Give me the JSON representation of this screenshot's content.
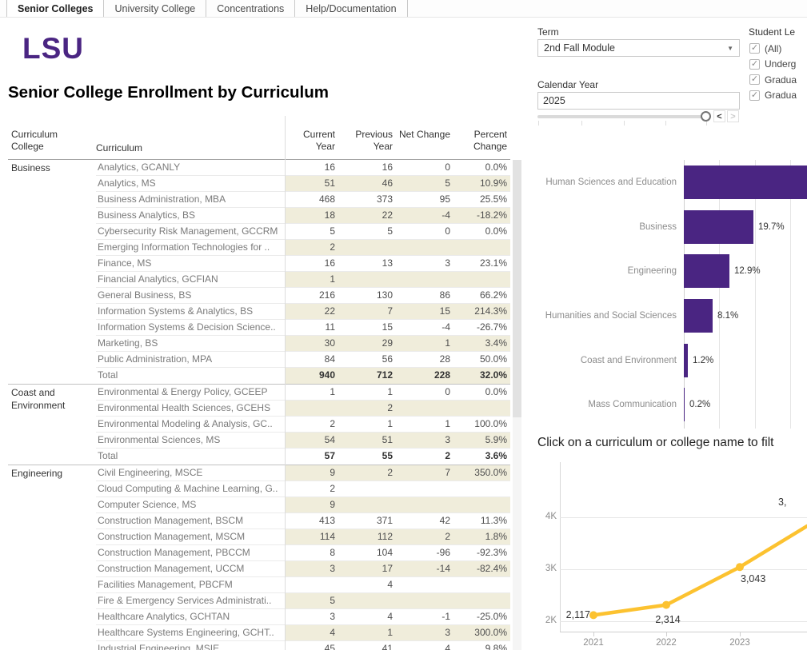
{
  "window": {
    "tabs": [
      {
        "label": "Senior Colleges",
        "active": true
      },
      {
        "label": "University College",
        "active": false
      },
      {
        "label": "Concentrations",
        "active": false
      },
      {
        "label": "Help/Documentation",
        "active": false
      }
    ]
  },
  "logo_text": "LSU",
  "page_title": "Senior College Enrollment by Curriculum",
  "filters": {
    "term_label": "Term",
    "term_value": "2nd Fall Module",
    "calendar_year_label": "Calendar Year",
    "calendar_year_value": "2025",
    "student_level_label": "Student Le",
    "student_level_options": [
      {
        "label": "(All)",
        "checked": true
      },
      {
        "label": "Underg",
        "checked": true
      },
      {
        "label": "Gradua",
        "checked": true
      },
      {
        "label": "Gradua",
        "checked": true
      }
    ]
  },
  "table": {
    "col_headers": {
      "college": "Curriculum College",
      "curriculum": "Curriculum",
      "current": "Current Year",
      "previous": "Previous Year",
      "net": "Net Change",
      "percent": "Percent Change"
    },
    "sections": [
      {
        "college": "Business",
        "rows": [
          {
            "curriculum": "Analytics, GCANLY",
            "current": "16",
            "previous": "16",
            "net": "0",
            "percent": "0.0%"
          },
          {
            "curriculum": "Analytics, MS",
            "current": "51",
            "previous": "46",
            "net": "5",
            "percent": "10.9%"
          },
          {
            "curriculum": "Business Administration, MBA",
            "current": "468",
            "previous": "373",
            "net": "95",
            "percent": "25.5%"
          },
          {
            "curriculum": "Business Analytics, BS",
            "current": "18",
            "previous": "22",
            "net": "-4",
            "percent": "-18.2%"
          },
          {
            "curriculum": "Cybersecurity Risk Management, GCCRM",
            "current": "5",
            "previous": "5",
            "net": "0",
            "percent": "0.0%"
          },
          {
            "curriculum": "Emerging Information Technologies for ..",
            "current": "2",
            "previous": "",
            "net": "",
            "percent": ""
          },
          {
            "curriculum": "Finance, MS",
            "current": "16",
            "previous": "13",
            "net": "3",
            "percent": "23.1%"
          },
          {
            "curriculum": "Financial Analytics, GCFIAN",
            "current": "1",
            "previous": "",
            "net": "",
            "percent": ""
          },
          {
            "curriculum": "General Business, BS",
            "current": "216",
            "previous": "130",
            "net": "86",
            "percent": "66.2%"
          },
          {
            "curriculum": "Information Systems & Analytics, BS",
            "current": "22",
            "previous": "7",
            "net": "15",
            "percent": "214.3%"
          },
          {
            "curriculum": "Information Systems & Decision Science..",
            "current": "11",
            "previous": "15",
            "net": "-4",
            "percent": "-26.7%"
          },
          {
            "curriculum": "Marketing, BS",
            "current": "30",
            "previous": "29",
            "net": "1",
            "percent": "3.4%"
          },
          {
            "curriculum": "Public Administration, MPA",
            "current": "84",
            "previous": "56",
            "net": "28",
            "percent": "50.0%"
          },
          {
            "curriculum": "Total",
            "current": "940",
            "previous": "712",
            "net": "228",
            "percent": "32.0%",
            "is_total": true
          }
        ]
      },
      {
        "college": "Coast and Environment",
        "rows": [
          {
            "curriculum": "Environmental & Energy Policy, GCEEP",
            "current": "1",
            "previous": "1",
            "net": "0",
            "percent": "0.0%"
          },
          {
            "curriculum": "Environmental Health Sciences, GCEHS",
            "current": "",
            "previous": "2",
            "net": "",
            "percent": ""
          },
          {
            "curriculum": "Environmental Modeling & Analysis, GC..",
            "current": "2",
            "previous": "1",
            "net": "1",
            "percent": "100.0%"
          },
          {
            "curriculum": "Environmental Sciences, MS",
            "current": "54",
            "previous": "51",
            "net": "3",
            "percent": "5.9%"
          },
          {
            "curriculum": "Total",
            "current": "57",
            "previous": "55",
            "net": "2",
            "percent": "3.6%",
            "is_total": true
          }
        ]
      },
      {
        "college": "Engineering",
        "rows": [
          {
            "curriculum": "Civil Engineering, MSCE",
            "current": "9",
            "previous": "2",
            "net": "7",
            "percent": "350.0%"
          },
          {
            "curriculum": "Cloud Computing & Machine Learning, G..",
            "current": "2",
            "previous": "",
            "net": "",
            "percent": ""
          },
          {
            "curriculum": "Computer Science, MS",
            "current": "9",
            "previous": "",
            "net": "",
            "percent": ""
          },
          {
            "curriculum": "Construction Management, BSCM",
            "current": "413",
            "previous": "371",
            "net": "42",
            "percent": "11.3%"
          },
          {
            "curriculum": "Construction Management, MSCM",
            "current": "114",
            "previous": "112",
            "net": "2",
            "percent": "1.8%"
          },
          {
            "curriculum": "Construction Management, PBCCM",
            "current": "8",
            "previous": "104",
            "net": "-96",
            "percent": "-92.3%"
          },
          {
            "curriculum": "Construction Management, UCCM",
            "current": "3",
            "previous": "17",
            "net": "-14",
            "percent": "-82.4%"
          },
          {
            "curriculum": "Facilities Management, PBCFM",
            "current": "",
            "previous": "4",
            "net": "",
            "percent": ""
          },
          {
            "curriculum": "Fire & Emergency Services Administrati..",
            "current": "5",
            "previous": "",
            "net": "",
            "percent": ""
          },
          {
            "curriculum": "Healthcare Analytics, GCHTAN",
            "current": "3",
            "previous": "4",
            "net": "-1",
            "percent": "-25.0%"
          },
          {
            "curriculum": "Healthcare Systems Engineering, GCHT..",
            "current": "4",
            "previous": "1",
            "net": "3",
            "percent": "300.0%"
          },
          {
            "curriculum": "Industrial Engineering, MSIE",
            "current": "45",
            "previous": "41",
            "net": "4",
            "percent": "9.8%"
          }
        ]
      }
    ]
  },
  "instruction_text": "Click on a curriculum or college name to filt",
  "chart_data": [
    {
      "type": "bar",
      "orientation": "horizontal",
      "categories": [
        "Human Sciences and Education",
        "Business",
        "Engineering",
        "Humanities and Social Sciences",
        "Coast and Environment",
        "Mass Communication"
      ],
      "values": [
        null,
        19.7,
        12.9,
        8.1,
        1.2,
        0.2
      ],
      "value_labels": [
        "",
        "19.7%",
        "12.9%",
        "8.1%",
        "1.2%",
        "0.2%"
      ],
      "unit": "percent",
      "xlim": [
        0,
        35
      ],
      "gridlines": [
        10,
        20,
        30
      ],
      "bar_color": "#4A2582",
      "notes": "First bar extends past the right edge of the view; its value label is not visible."
    },
    {
      "type": "line",
      "x": [
        "2021",
        "2022",
        "2023"
      ],
      "values": [
        2117,
        2314,
        3043
      ],
      "point_labels": [
        "2,117",
        "2,314",
        "3,043"
      ],
      "partial_label": "3,",
      "y_ticks": [
        "2K",
        "3K",
        "4K"
      ],
      "ylim": [
        1800,
        5050
      ],
      "line_color": "#FCC230",
      "notes": "Line continues past the right edge toward a fourth point whose label is clipped."
    }
  ],
  "colors": {
    "lsu_purple": "#4A2582",
    "lsu_gold": "#FCC230",
    "row_shade": "#F0EDDB"
  }
}
